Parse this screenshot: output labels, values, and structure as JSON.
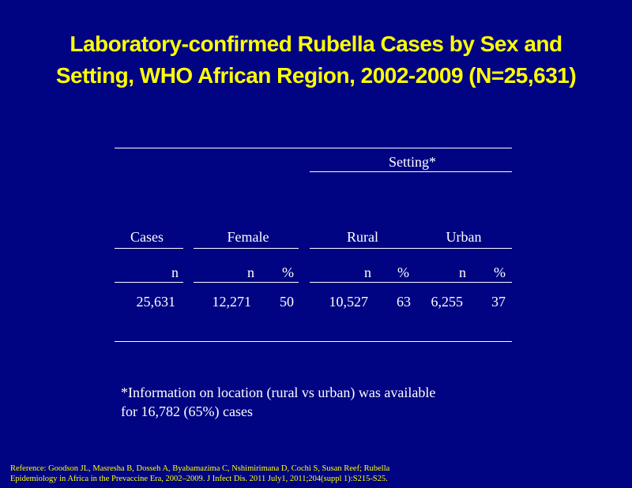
{
  "title": [
    "Laboratory-confirmed Rubella Cases by Sex and",
    "Setting, WHO African Region, 2002-2009 (N=25,631)"
  ],
  "table": {
    "group_header": "Setting*",
    "headers": [
      "Cases",
      "Female",
      "Rural",
      "Urban"
    ],
    "subheaders": [
      "n",
      "n",
      "%",
      "n",
      "%",
      "n",
      "%"
    ],
    "rows": [
      [
        "25,631",
        "12,271",
        "50",
        "10,527",
        "63",
        "6,255",
        "37"
      ]
    ]
  },
  "footnote": [
    "*Information on location (rural vs urban) was available",
    "for 16,782 (65%) cases"
  ],
  "reference": [
    "Reference:  Goodson JL, Masresha B, Dosseh A, Byabamazima C, Nshimirimana D, Cochi S, Susan Reef; Rubella",
    "Epidemiology in Africa in the Prevaccine Era, 2002–2009. J Infect Dis. 2011 July1, 2011;204(suppl 1):S215-S25."
  ]
}
